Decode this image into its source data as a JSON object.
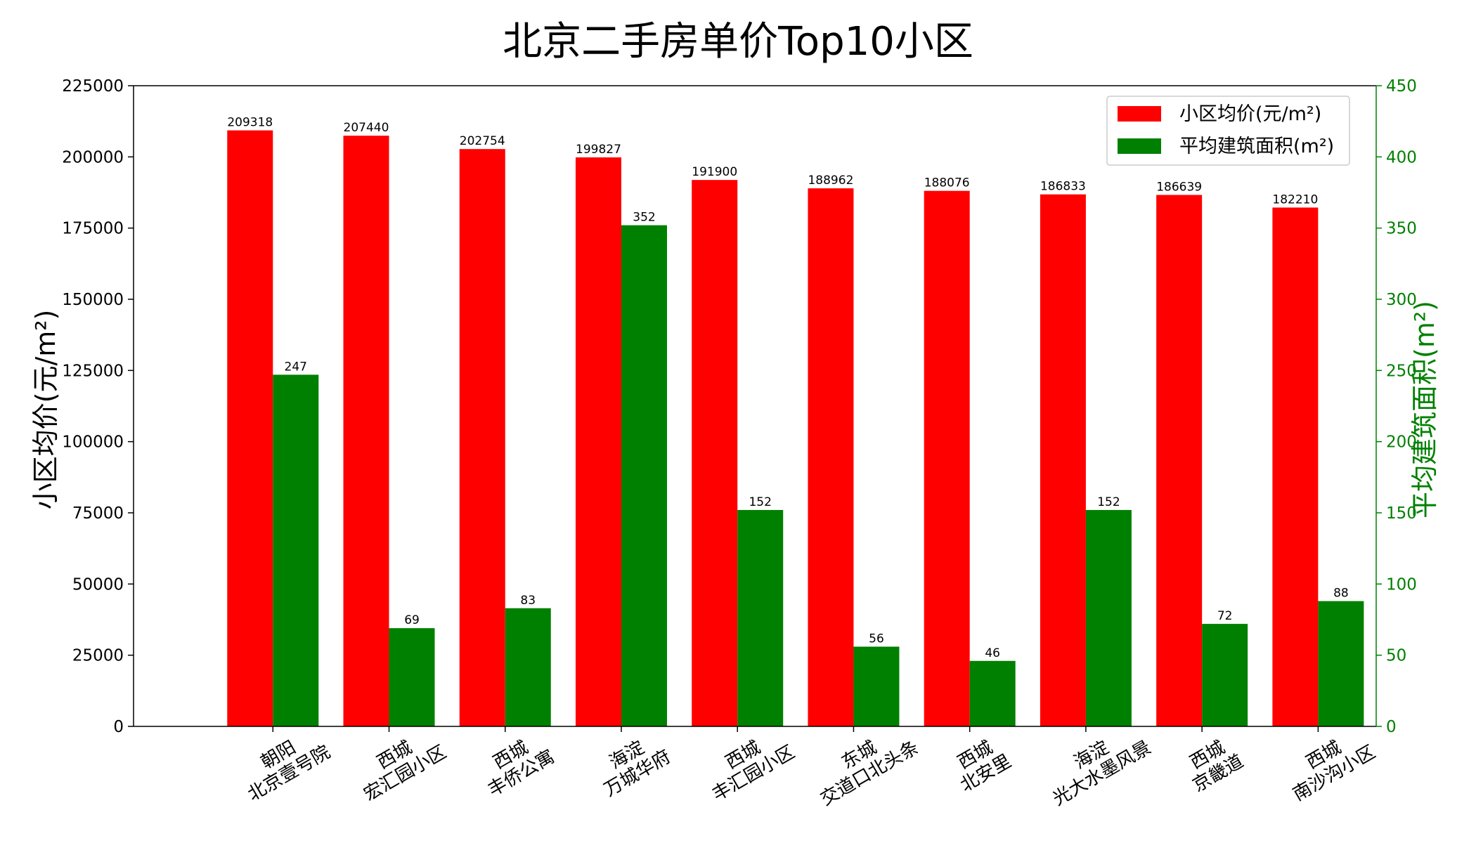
{
  "chart_data": {
    "type": "bar",
    "title": "北京二手房单价Top10小区",
    "categories": [
      [
        "朝阳",
        "北京壹号院"
      ],
      [
        "西城",
        "宏汇园小区"
      ],
      [
        "西城",
        "丰侨公寓"
      ],
      [
        "海淀",
        "万城华府"
      ],
      [
        "西城",
        "丰汇园小区"
      ],
      [
        "东城",
        "交道口北头条"
      ],
      [
        "西城",
        "北安里"
      ],
      [
        "海淀",
        "光大水墨风景"
      ],
      [
        "西城",
        "京畿道"
      ],
      [
        "西城",
        "南沙沟小区"
      ]
    ],
    "series": [
      {
        "name": "小区均价(元/m²)",
        "axis": "left",
        "color": "#ff0000",
        "values": [
          209318,
          207440,
          202754,
          199827,
          191900,
          188962,
          188076,
          186833,
          186639,
          182210
        ]
      },
      {
        "name": "平均建筑面积(m²)",
        "axis": "right",
        "color": "#008000",
        "values": [
          247,
          69,
          83,
          352,
          152,
          56,
          46,
          152,
          72,
          88
        ]
      }
    ],
    "ylabel": "小区均价(元/m²)",
    "ylabel_right": "平均建筑面积(m²)",
    "ylim": [
      0,
      225000
    ],
    "ylim_right": [
      0,
      450
    ],
    "yticks": [
      0,
      25000,
      50000,
      75000,
      100000,
      125000,
      150000,
      175000,
      200000,
      225000
    ],
    "yticks_right": [
      0,
      50,
      100,
      150,
      200,
      250,
      300,
      350,
      400,
      450
    ],
    "right_axis_color": "#008000",
    "legend_position": "top-right",
    "grid": false
  }
}
